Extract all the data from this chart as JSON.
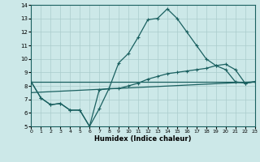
{
  "xlabel": "Humidex (Indice chaleur)",
  "xlim": [
    0,
    23
  ],
  "ylim": [
    5,
    14
  ],
  "xticks": [
    0,
    1,
    2,
    3,
    4,
    5,
    6,
    7,
    8,
    9,
    10,
    11,
    12,
    13,
    14,
    15,
    16,
    17,
    18,
    19,
    20,
    21,
    22,
    23
  ],
  "yticks": [
    5,
    6,
    7,
    8,
    9,
    10,
    11,
    12,
    13,
    14
  ],
  "background_color": "#cce8e8",
  "grid_color": "#aacccc",
  "line_color": "#1a6060",
  "line1": {
    "x": [
      0,
      1,
      2,
      3,
      4,
      5,
      6,
      7,
      8,
      9,
      10,
      11,
      12,
      13,
      14,
      15,
      16,
      17,
      18,
      19,
      20,
      21,
      22,
      23
    ],
    "y": [
      8.3,
      7.1,
      6.6,
      6.7,
      6.2,
      6.2,
      5.0,
      6.3,
      7.8,
      9.7,
      10.4,
      11.6,
      12.9,
      13.0,
      13.7,
      13.0,
      12.0,
      11.0,
      10.0,
      9.5,
      9.2,
      8.3,
      8.2,
      8.3
    ]
  },
  "line2": {
    "x": [
      0,
      1,
      2,
      3,
      4,
      5,
      6,
      7,
      8,
      9,
      10,
      11,
      12,
      13,
      14,
      15,
      16,
      17,
      18,
      19,
      20,
      21,
      22,
      23
    ],
    "y": [
      8.3,
      7.1,
      6.6,
      6.7,
      6.2,
      6.2,
      5.0,
      7.7,
      7.8,
      7.8,
      8.0,
      8.2,
      8.5,
      8.7,
      8.9,
      9.0,
      9.1,
      9.2,
      9.3,
      9.5,
      9.6,
      9.2,
      8.2,
      8.3
    ]
  },
  "line3": {
    "x": [
      0,
      23
    ],
    "y": [
      8.3,
      8.3
    ]
  },
  "line4": {
    "x": [
      0,
      23
    ],
    "y": [
      7.5,
      8.3
    ]
  }
}
